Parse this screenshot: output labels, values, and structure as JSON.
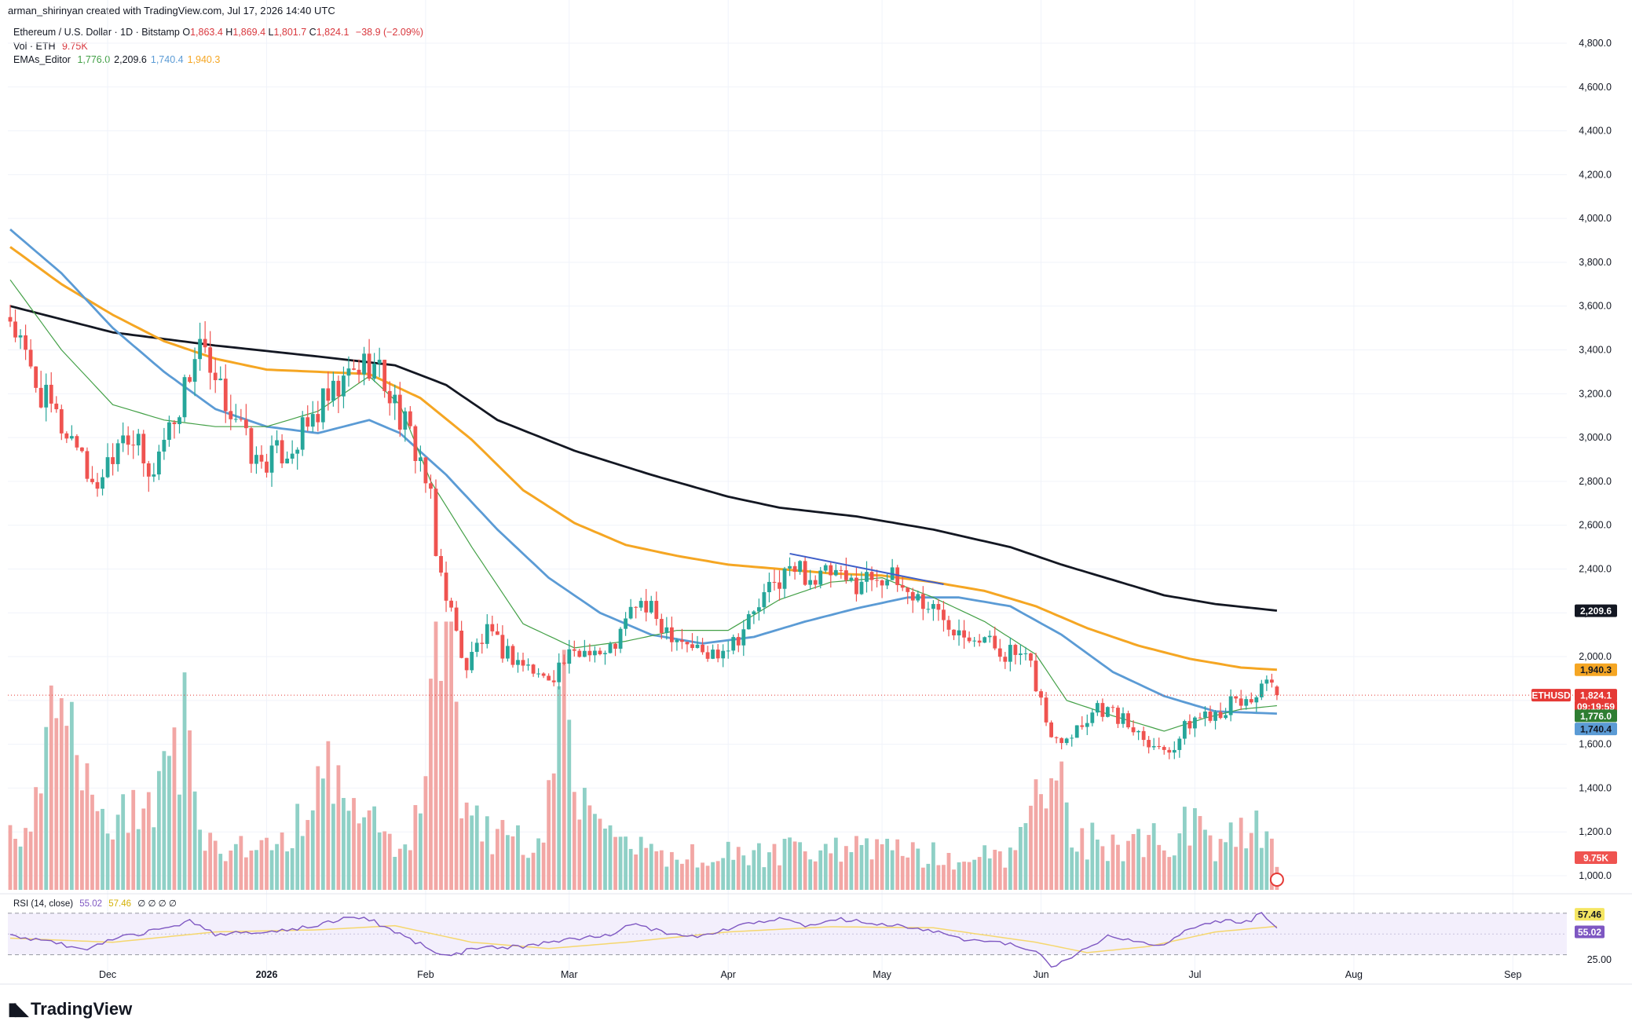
{
  "header": {
    "attribution": "arman_shirinyan created with TradingView.com, Jul 17, 2026 14:40 UTC"
  },
  "legend": {
    "title": "Ethereum / U.S. Dollar · 1D · Bitstamp",
    "ohlc": [
      {
        "k": "O",
        "v": "1,863.4"
      },
      {
        "k": "H",
        "v": "1,869.4"
      },
      {
        "k": "L",
        "v": "1,801.7"
      },
      {
        "k": "C",
        "v": "1,824.1"
      }
    ],
    "change": "−38.9 (−2.09%)",
    "vol_label": "Vol · ETH",
    "vol_value": "9.75K",
    "ema_label": "EMAs_Editor",
    "ema_values": [
      {
        "v": "1,776.0",
        "color": "#43a047"
      },
      {
        "v": "2,209.6",
        "color": "#131722"
      },
      {
        "v": "1,740.4",
        "color": "#5b9bd5"
      },
      {
        "v": "1,940.3",
        "color": "#f5a623"
      }
    ],
    "rsi_label": "RSI (14, close)",
    "rsi_value": "55.02",
    "rsi_ma_value": "57.46",
    "rsi_extra": "∅ ∅ ∅ ∅"
  },
  "brand": {
    "name": "TradingView"
  },
  "colors": {
    "up": "#26a69a",
    "down": "#ef5350",
    "vol_up": "#8fd0c6",
    "vol_down": "#f2a7a5",
    "ema20": "#43a047",
    "ema200": "#131722",
    "ema50": "#5b9bd5",
    "ema100": "#f5a623",
    "rsi": "#7e57c2",
    "rsi_ma": "#f5d76e",
    "trendline": "#3f5fc9"
  },
  "chart_data": {
    "type": "candlestick",
    "title": "Ethereum / U.S. Dollar · 1D · Bitstamp",
    "ylim": [
      1000,
      4800
    ],
    "y_ticks": [
      "4,800.0",
      "4,600.0",
      "4,400.0",
      "4,200.0",
      "4,000.0",
      "3,800.0",
      "3,600.0",
      "3,400.0",
      "3,200.0",
      "3,000.0",
      "2,800.0",
      "2,600.0",
      "2,400.0",
      "2,200.0",
      "2,000.0",
      "1,800.0",
      "1,600.0",
      "1,400.0",
      "1,200.0",
      "1,000.0"
    ],
    "x_ticks": [
      "Dec",
      "2026",
      "Feb",
      "Mar",
      "Apr",
      "May",
      "Jun",
      "Jul",
      "Aug",
      "Sep"
    ],
    "x_tick_days": [
      19,
      50,
      81,
      109,
      140,
      170,
      201,
      231,
      262,
      293
    ],
    "start_date": "2025-11-12",
    "last_day": 247,
    "price_keypoints": [
      [
        0,
        3550
      ],
      [
        3,
        3350
      ],
      [
        6,
        3200
      ],
      [
        10,
        3050
      ],
      [
        14,
        2950
      ],
      [
        16,
        2750
      ],
      [
        19,
        2900
      ],
      [
        22,
        3050
      ],
      [
        25,
        2950
      ],
      [
        27,
        2800
      ],
      [
        30,
        3000
      ],
      [
        33,
        3150
      ],
      [
        35,
        3300
      ],
      [
        37,
        3450
      ],
      [
        39,
        3250
      ],
      [
        41,
        3200
      ],
      [
        44,
        3100
      ],
      [
        46,
        2980
      ],
      [
        48,
        2880
      ],
      [
        52,
        2920
      ],
      [
        55,
        2960
      ],
      [
        58,
        3050
      ],
      [
        61,
        3150
      ],
      [
        64,
        3200
      ],
      [
        66,
        3280
      ],
      [
        68,
        3320
      ],
      [
        70,
        3350
      ],
      [
        72,
        3300
      ],
      [
        74,
        3200
      ],
      [
        76,
        3100
      ],
      [
        78,
        3000
      ],
      [
        80,
        2900
      ],
      [
        82,
        2700
      ],
      [
        83,
        2450
      ],
      [
        85,
        2300
      ],
      [
        87,
        2100
      ],
      [
        89,
        1950
      ],
      [
        91,
        2050
      ],
      [
        93,
        2100
      ],
      [
        95,
        2050
      ],
      [
        98,
        2000
      ],
      [
        101,
        1950
      ],
      [
        104,
        1900
      ],
      [
        106,
        1930
      ],
      [
        108,
        1980
      ],
      [
        110,
        2000
      ],
      [
        113,
        2050
      ],
      [
        116,
        2000
      ],
      [
        119,
        2100
      ],
      [
        122,
        2250
      ],
      [
        125,
        2200
      ],
      [
        127,
        2150
      ],
      [
        130,
        2100
      ],
      [
        133,
        2050
      ],
      [
        136,
        2000
      ],
      [
        139,
        2050
      ],
      [
        142,
        2100
      ],
      [
        145,
        2200
      ],
      [
        148,
        2300
      ],
      [
        151,
        2380
      ],
      [
        154,
        2400
      ],
      [
        157,
        2350
      ],
      [
        160,
        2380
      ],
      [
        163,
        2330
      ],
      [
        166,
        2350
      ],
      [
        169,
        2380
      ],
      [
        172,
        2350
      ],
      [
        175,
        2300
      ],
      [
        178,
        2250
      ],
      [
        181,
        2200
      ],
      [
        184,
        2150
      ],
      [
        187,
        2120
      ],
      [
        190,
        2080
      ],
      [
        193,
        2030
      ],
      [
        196,
        2010
      ],
      [
        199,
        1950
      ],
      [
        201,
        1800
      ],
      [
        203,
        1620
      ],
      [
        206,
        1650
      ],
      [
        209,
        1700
      ],
      [
        212,
        1780
      ],
      [
        215,
        1740
      ],
      [
        218,
        1690
      ],
      [
        221,
        1650
      ],
      [
        224,
        1580
      ],
      [
        227,
        1600
      ],
      [
        230,
        1700
      ],
      [
        233,
        1740
      ],
      [
        236,
        1760
      ],
      [
        239,
        1790
      ],
      [
        242,
        1800
      ],
      [
        244,
        1880
      ],
      [
        247,
        1824
      ]
    ],
    "ema20_keypoints": [
      [
        0,
        3720
      ],
      [
        10,
        3400
      ],
      [
        20,
        3150
      ],
      [
        30,
        3080
      ],
      [
        40,
        3050
      ],
      [
        50,
        3050
      ],
      [
        60,
        3120
      ],
      [
        70,
        3280
      ],
      [
        76,
        3150
      ],
      [
        82,
        2800
      ],
      [
        90,
        2500
      ],
      [
        100,
        2150
      ],
      [
        110,
        2040
      ],
      [
        120,
        2070
      ],
      [
        130,
        2120
      ],
      [
        140,
        2120
      ],
      [
        150,
        2260
      ],
      [
        160,
        2340
      ],
      [
        170,
        2360
      ],
      [
        180,
        2270
      ],
      [
        190,
        2160
      ],
      [
        200,
        2010
      ],
      [
        206,
        1800
      ],
      [
        215,
        1730
      ],
      [
        225,
        1660
      ],
      [
        233,
        1720
      ],
      [
        240,
        1760
      ],
      [
        247,
        1776
      ]
    ],
    "ema50_keypoints": [
      [
        0,
        3950
      ],
      [
        10,
        3750
      ],
      [
        20,
        3500
      ],
      [
        30,
        3300
      ],
      [
        40,
        3130
      ],
      [
        50,
        3050
      ],
      [
        60,
        3020
      ],
      [
        70,
        3080
      ],
      [
        76,
        3020
      ],
      [
        85,
        2830
      ],
      [
        95,
        2580
      ],
      [
        105,
        2360
      ],
      [
        115,
        2200
      ],
      [
        125,
        2100
      ],
      [
        135,
        2060
      ],
      [
        145,
        2090
      ],
      [
        155,
        2160
      ],
      [
        165,
        2220
      ],
      [
        175,
        2270
      ],
      [
        185,
        2270
      ],
      [
        195,
        2230
      ],
      [
        205,
        2100
      ],
      [
        215,
        1930
      ],
      [
        225,
        1820
      ],
      [
        235,
        1750
      ],
      [
        247,
        1740
      ]
    ],
    "ema100_keypoints": [
      [
        0,
        3870
      ],
      [
        10,
        3700
      ],
      [
        20,
        3560
      ],
      [
        30,
        3440
      ],
      [
        40,
        3360
      ],
      [
        50,
        3310
      ],
      [
        60,
        3300
      ],
      [
        70,
        3290
      ],
      [
        80,
        3180
      ],
      [
        90,
        2990
      ],
      [
        100,
        2760
      ],
      [
        110,
        2610
      ],
      [
        120,
        2510
      ],
      [
        130,
        2460
      ],
      [
        140,
        2420
      ],
      [
        150,
        2400
      ],
      [
        160,
        2380
      ],
      [
        170,
        2370
      ],
      [
        180,
        2340
      ],
      [
        190,
        2300
      ],
      [
        200,
        2230
      ],
      [
        210,
        2130
      ],
      [
        220,
        2050
      ],
      [
        230,
        1990
      ],
      [
        240,
        1950
      ],
      [
        247,
        1940
      ]
    ],
    "ema200_keypoints": [
      [
        0,
        3600
      ],
      [
        20,
        3480
      ],
      [
        40,
        3420
      ],
      [
        60,
        3370
      ],
      [
        75,
        3330
      ],
      [
        85,
        3240
      ],
      [
        95,
        3080
      ],
      [
        110,
        2940
      ],
      [
        125,
        2830
      ],
      [
        140,
        2730
      ],
      [
        150,
        2680
      ],
      [
        165,
        2640
      ],
      [
        180,
        2580
      ],
      [
        195,
        2500
      ],
      [
        205,
        2420
      ],
      [
        215,
        2350
      ],
      [
        225,
        2280
      ],
      [
        235,
        2240
      ],
      [
        247,
        2210
      ]
    ],
    "volume_max": 1600,
    "volume_keypoints": [
      [
        0,
        400
      ],
      [
        5,
        600
      ],
      [
        9,
        1400
      ],
      [
        14,
        900
      ],
      [
        19,
        500
      ],
      [
        24,
        600
      ],
      [
        29,
        800
      ],
      [
        34,
        1300
      ],
      [
        36,
        600
      ],
      [
        41,
        300
      ],
      [
        46,
        350
      ],
      [
        51,
        350
      ],
      [
        55,
        500
      ],
      [
        61,
        900
      ],
      [
        64,
        800
      ],
      [
        69,
        600
      ],
      [
        74,
        350
      ],
      [
        79,
        500
      ],
      [
        82,
        1800
      ],
      [
        84,
        1600
      ],
      [
        86,
        2600
      ],
      [
        88,
        800
      ],
      [
        93,
        450
      ],
      [
        98,
        400
      ],
      [
        103,
        350
      ],
      [
        106,
        1000
      ],
      [
        108,
        2100
      ],
      [
        110,
        800
      ],
      [
        113,
        500
      ],
      [
        120,
        350
      ],
      [
        125,
        300
      ],
      [
        135,
        280
      ],
      [
        145,
        280
      ],
      [
        155,
        320
      ],
      [
        165,
        320
      ],
      [
        175,
        300
      ],
      [
        185,
        260
      ],
      [
        195,
        300
      ],
      [
        201,
        800
      ],
      [
        203,
        1200
      ],
      [
        206,
        600
      ],
      [
        210,
        400
      ],
      [
        215,
        350
      ],
      [
        225,
        400
      ],
      [
        230,
        500
      ],
      [
        235,
        350
      ],
      [
        240,
        450
      ],
      [
        244,
        550
      ],
      [
        247,
        300
      ]
    ],
    "rsi_keypoints": [
      [
        0,
        48
      ],
      [
        10,
        40
      ],
      [
        15,
        34
      ],
      [
        20,
        45
      ],
      [
        30,
        55
      ],
      [
        35,
        63
      ],
      [
        40,
        50
      ],
      [
        50,
        52
      ],
      [
        60,
        58
      ],
      [
        66,
        66
      ],
      [
        70,
        64
      ],
      [
        76,
        50
      ],
      [
        82,
        35
      ],
      [
        86,
        28
      ],
      [
        90,
        36
      ],
      [
        100,
        38
      ],
      [
        106,
        42
      ],
      [
        110,
        46
      ],
      [
        116,
        48
      ],
      [
        122,
        60
      ],
      [
        128,
        50
      ],
      [
        135,
        48
      ],
      [
        140,
        55
      ],
      [
        150,
        66
      ],
      [
        155,
        57
      ],
      [
        162,
        64
      ],
      [
        170,
        60
      ],
      [
        178,
        55
      ],
      [
        186,
        45
      ],
      [
        195,
        40
      ],
      [
        201,
        30
      ],
      [
        203,
        18
      ],
      [
        207,
        28
      ],
      [
        214,
        48
      ],
      [
        220,
        42
      ],
      [
        225,
        38
      ],
      [
        230,
        55
      ],
      [
        236,
        62
      ],
      [
        242,
        62
      ],
      [
        244,
        72
      ],
      [
        247,
        55
      ]
    ],
    "rsi_ma_keypoints": [
      [
        0,
        46
      ],
      [
        20,
        42
      ],
      [
        40,
        52
      ],
      [
        60,
        54
      ],
      [
        75,
        58
      ],
      [
        90,
        42
      ],
      [
        105,
        36
      ],
      [
        120,
        42
      ],
      [
        140,
        52
      ],
      [
        160,
        57
      ],
      [
        180,
        56
      ],
      [
        200,
        42
      ],
      [
        210,
        32
      ],
      [
        222,
        38
      ],
      [
        235,
        52
      ],
      [
        247,
        57.46
      ]
    ],
    "trendline": [
      [
        152,
        2470
      ],
      [
        182,
        2330
      ]
    ],
    "rsi_ylim": [
      10,
      85
    ],
    "rsi_ticks": [
      "25.00"
    ],
    "rsi_levels": [
      30,
      70
    ],
    "price_tags": [
      {
        "label": "2,209.6",
        "value": 2209.6,
        "bg": "#131722",
        "fg": "#ffffff"
      },
      {
        "label": "1,940.3",
        "value": 1940.3,
        "bg": "#f5a623",
        "fg": "#131722"
      },
      {
        "label": "1,824.1",
        "value": 1824.1,
        "bg": "#e53935",
        "fg": "#ffffff"
      },
      {
        "label": "09:19:59",
        "value": 1772,
        "bg": "#e53935",
        "fg": "#ffffff"
      },
      {
        "label": "1,776.0",
        "value": 1730,
        "bg": "#2e7d32",
        "fg": "#ffffff"
      },
      {
        "label": "1,740.4",
        "value": 1670,
        "bg": "#5b9bd5",
        "fg": "#131722"
      },
      {
        "label": "9.75K",
        "value": 1080,
        "bg": "#ef5350",
        "fg": "#ffffff"
      }
    ],
    "symbol_tag": "ETHUSD",
    "rsi_tags": [
      {
        "label": "57.46",
        "value": 69,
        "bg": "#f5e663",
        "fg": "#131722"
      },
      {
        "label": "55.02",
        "value": 52,
        "bg": "#7e57c2",
        "fg": "#ffffff"
      }
    ]
  }
}
